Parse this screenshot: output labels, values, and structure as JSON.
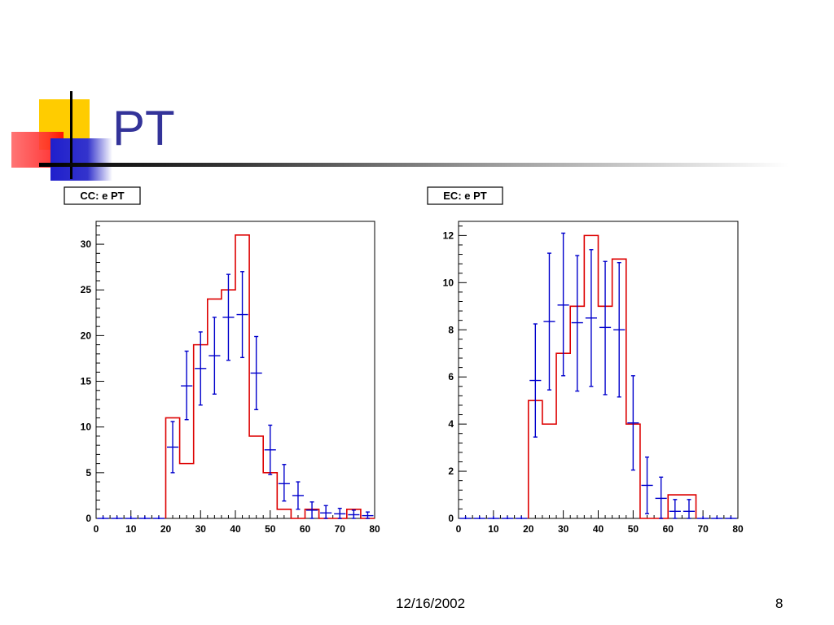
{
  "slide": {
    "title": "PT",
    "date": "12/16/2002",
    "page_number": "8"
  },
  "colors": {
    "title": "#333399",
    "histogram": "#dd0000",
    "points": "#0000cc"
  },
  "chart_data": [
    {
      "type": "histogram",
      "title": "CC: e PT",
      "xlim": [
        0,
        80
      ],
      "ylim": [
        0,
        32.5
      ],
      "xticks": [
        0,
        10,
        20,
        30,
        40,
        50,
        60,
        70,
        80
      ],
      "yticks": [
        0,
        5,
        10,
        15,
        20,
        25,
        30
      ],
      "bin_width": 4,
      "histogram": {
        "bin_edges": [
          20,
          24,
          28,
          32,
          36,
          40,
          44,
          48,
          52,
          56,
          60,
          64,
          68,
          72,
          76,
          80
        ],
        "values": [
          11,
          6,
          19,
          24,
          25,
          31,
          9,
          5,
          1,
          0,
          1,
          0,
          0,
          1,
          0
        ]
      },
      "points": {
        "x": [
          2,
          6,
          10,
          14,
          18,
          22,
          26,
          30,
          34,
          38,
          42,
          46,
          50,
          54,
          58,
          62,
          66,
          70,
          74,
          78
        ],
        "y": [
          0,
          0,
          0,
          0,
          0,
          7.8,
          14.5,
          16.4,
          17.8,
          22,
          22.3,
          15.9,
          7.5,
          3.8,
          2.5,
          0.9,
          0.6,
          0.5,
          0.4,
          0.3
        ],
        "err_low": [
          0,
          0,
          0,
          0,
          0,
          2.8,
          3.7,
          4,
          4.2,
          4.7,
          4.7,
          4,
          2.7,
          1.9,
          1.5,
          0.9,
          0.6,
          0.5,
          0.4,
          0.3
        ],
        "err_high": [
          0,
          0,
          0,
          0,
          0,
          2.8,
          3.8,
          4,
          4.2,
          4.7,
          4.7,
          4,
          2.7,
          2.1,
          1.5,
          0.9,
          0.8,
          0.6,
          0.5,
          0.4
        ]
      }
    },
    {
      "type": "histogram",
      "title": "EC: e PT",
      "xlim": [
        0,
        80
      ],
      "ylim": [
        0,
        12.6
      ],
      "xticks": [
        0,
        10,
        20,
        30,
        40,
        50,
        60,
        70,
        80
      ],
      "yticks": [
        0,
        2,
        4,
        6,
        8,
        10,
        12
      ],
      "bin_width": 4,
      "histogram": {
        "bin_edges": [
          20,
          24,
          28,
          32,
          36,
          40,
          44,
          48,
          52,
          56,
          60,
          64,
          68
        ],
        "values": [
          5,
          4,
          7,
          9,
          12,
          9,
          11,
          4,
          0,
          0,
          1,
          1
        ]
      },
      "points": {
        "x": [
          2,
          6,
          10,
          14,
          18,
          22,
          26,
          30,
          34,
          38,
          42,
          46,
          50,
          54,
          58,
          62,
          66,
          70,
          74,
          78
        ],
        "y": [
          0,
          0,
          0,
          0,
          0,
          5.85,
          8.35,
          9.05,
          8.3,
          8.5,
          8.1,
          8.0,
          4.05,
          1.4,
          0.85,
          0.3,
          0.3,
          0,
          0,
          0
        ],
        "err_low": [
          0,
          0,
          0,
          0,
          0,
          2.4,
          2.9,
          3.0,
          2.9,
          2.9,
          2.85,
          2.85,
          2.0,
          1.2,
          0.85,
          0.3,
          0.3,
          0,
          0,
          0
        ],
        "err_high": [
          0,
          0,
          0,
          0,
          0,
          2.4,
          2.9,
          3.05,
          2.85,
          2.9,
          2.8,
          2.85,
          2.0,
          1.2,
          0.9,
          0.5,
          0.5,
          0,
          0,
          0
        ]
      }
    }
  ]
}
